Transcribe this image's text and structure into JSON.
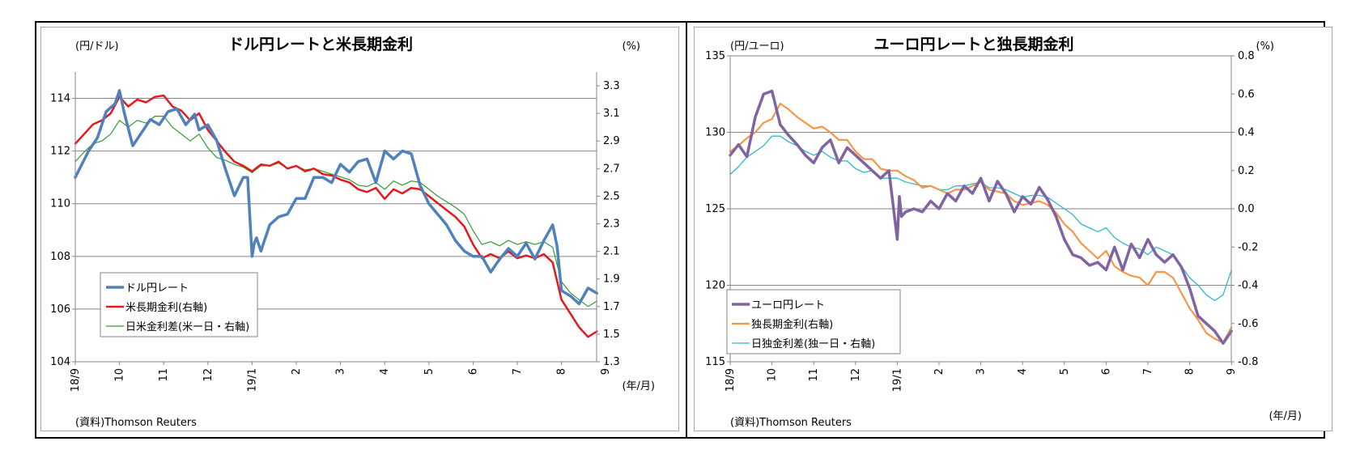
{
  "colors": {
    "frame": "#000000",
    "grid": "#868686"
  },
  "chart_data": [
    {
      "type": "line",
      "title": "ドル円レートと米長期金利",
      "ylabel_left": "(円/ドル)",
      "ylabel_right": "(%)",
      "xlabel": "(年/月)",
      "source": "(資料)Thomson Reuters",
      "ylim_left": [
        104,
        115
      ],
      "ylim_right": [
        1.3,
        3.4
      ],
      "yticks_left": [
        "104",
        "106",
        "108",
        "110",
        "112",
        "114"
      ],
      "yticks_right": [
        "1.3",
        "1.5",
        "1.7",
        "1.9",
        "2.1",
        "2.3",
        "2.5",
        "2.7",
        "2.9",
        "3.1",
        "3.3"
      ],
      "x_range": [
        0,
        11.8
      ],
      "xticks": [
        {
          "label": "18/9",
          "x": 0
        },
        {
          "label": "10",
          "x": 1
        },
        {
          "label": "11",
          "x": 2
        },
        {
          "label": "12",
          "x": 3
        },
        {
          "label": "19/1",
          "x": 4
        },
        {
          "label": "2",
          "x": 5
        },
        {
          "label": "3",
          "x": 6
        },
        {
          "label": "4",
          "x": 7
        },
        {
          "label": "5",
          "x": 8
        },
        {
          "label": "6",
          "x": 9
        },
        {
          "label": "7",
          "x": 10
        },
        {
          "label": "8",
          "x": 11
        },
        {
          "label": "9",
          "x": 12
        }
      ],
      "legend_position": "bottom-left",
      "series": [
        {
          "name": "ドル円レート",
          "axis": "left",
          "color": "#4f81bd",
          "width": 3.5,
          "x": [
            0,
            0.15,
            0.3,
            0.5,
            0.7,
            0.9,
            1.0,
            1.1,
            1.3,
            1.5,
            1.7,
            1.9,
            2.1,
            2.3,
            2.5,
            2.7,
            2.8,
            3.0,
            3.2,
            3.4,
            3.6,
            3.8,
            3.9,
            4.0,
            4.05,
            4.1,
            4.2,
            4.4,
            4.6,
            4.8,
            5.0,
            5.2,
            5.4,
            5.6,
            5.8,
            6.0,
            6.2,
            6.4,
            6.6,
            6.8,
            7.0,
            7.2,
            7.4,
            7.6,
            7.8,
            8.0,
            8.2,
            8.4,
            8.6,
            8.8,
            9.0,
            9.2,
            9.4,
            9.6,
            9.8,
            10.0,
            10.2,
            10.4,
            10.6,
            10.8,
            10.9,
            11.0,
            11.2,
            11.4,
            11.6,
            11.8
          ],
          "y": [
            111.0,
            111.5,
            112.0,
            112.5,
            113.5,
            113.8,
            114.3,
            113.5,
            112.2,
            112.7,
            113.2,
            113.0,
            113.5,
            113.6,
            113.0,
            113.4,
            112.8,
            113.0,
            112.4,
            111.3,
            110.3,
            111.0,
            111.0,
            108.0,
            108.5,
            108.7,
            108.2,
            109.2,
            109.5,
            109.6,
            110.2,
            110.2,
            111.0,
            111.0,
            110.8,
            111.5,
            111.2,
            111.6,
            111.7,
            110.8,
            112.0,
            111.7,
            112.0,
            111.9,
            110.7,
            110.0,
            109.6,
            109.2,
            108.6,
            108.2,
            108.0,
            108.0,
            107.4,
            107.9,
            108.3,
            108.0,
            108.5,
            107.9,
            108.6,
            109.2,
            108.4,
            106.7,
            106.5,
            106.2,
            106.8,
            106.6
          ]
        },
        {
          "name": "米長期金利(右軸)",
          "axis": "right",
          "color": "#e41a1c",
          "width": 2.5,
          "x": [
            0,
            0.2,
            0.4,
            0.6,
            0.8,
            1.0,
            1.2,
            1.4,
            1.6,
            1.8,
            2.0,
            2.2,
            2.4,
            2.6,
            2.8,
            3.0,
            3.2,
            3.4,
            3.6,
            3.8,
            4.0,
            4.2,
            4.4,
            4.6,
            4.8,
            5.0,
            5.2,
            5.4,
            5.6,
            5.8,
            6.0,
            6.2,
            6.4,
            6.6,
            6.8,
            7.0,
            7.2,
            7.4,
            7.6,
            7.8,
            8.0,
            8.2,
            8.4,
            8.6,
            8.8,
            9.0,
            9.2,
            9.4,
            9.6,
            9.8,
            10.0,
            10.2,
            10.4,
            10.6,
            10.8,
            11.0,
            11.2,
            11.4,
            11.6,
            11.8
          ],
          "y": [
            2.88,
            2.95,
            3.02,
            3.05,
            3.1,
            3.22,
            3.15,
            3.2,
            3.18,
            3.22,
            3.23,
            3.15,
            3.12,
            3.05,
            3.1,
            2.98,
            2.9,
            2.82,
            2.75,
            2.72,
            2.68,
            2.73,
            2.72,
            2.75,
            2.7,
            2.72,
            2.68,
            2.7,
            2.66,
            2.65,
            2.62,
            2.6,
            2.55,
            2.53,
            2.56,
            2.48,
            2.55,
            2.52,
            2.56,
            2.55,
            2.5,
            2.45,
            2.4,
            2.35,
            2.28,
            2.15,
            2.05,
            2.08,
            2.05,
            2.1,
            2.05,
            2.07,
            2.05,
            2.08,
            2.02,
            1.75,
            1.65,
            1.55,
            1.48,
            1.52
          ]
        },
        {
          "name": "日米金利差(米ー日・右軸)",
          "axis": "right",
          "color": "#339933",
          "width": 1.2,
          "x": [
            0,
            0.2,
            0.4,
            0.6,
            0.8,
            1.0,
            1.2,
            1.4,
            1.6,
            1.8,
            2.0,
            2.2,
            2.4,
            2.6,
            2.8,
            3.0,
            3.2,
            3.4,
            3.6,
            3.8,
            4.0,
            4.2,
            4.4,
            4.6,
            4.8,
            5.0,
            5.2,
            5.4,
            5.6,
            5.8,
            6.0,
            6.2,
            6.4,
            6.6,
            6.8,
            7.0,
            7.2,
            7.4,
            7.6,
            7.8,
            8.0,
            8.2,
            8.4,
            8.6,
            8.8,
            9.0,
            9.2,
            9.4,
            9.6,
            9.8,
            10.0,
            10.2,
            10.4,
            10.6,
            10.8,
            11.0,
            11.2,
            11.4,
            11.6,
            11.8
          ],
          "y": [
            2.75,
            2.82,
            2.88,
            2.9,
            2.95,
            3.05,
            3.0,
            3.05,
            3.03,
            3.08,
            3.08,
            3.0,
            2.95,
            2.9,
            2.95,
            2.85,
            2.78,
            2.76,
            2.73,
            2.71,
            2.67,
            2.72,
            2.72,
            2.74,
            2.7,
            2.72,
            2.69,
            2.7,
            2.68,
            2.66,
            2.64,
            2.62,
            2.58,
            2.57,
            2.6,
            2.55,
            2.61,
            2.58,
            2.61,
            2.6,
            2.55,
            2.5,
            2.46,
            2.42,
            2.37,
            2.25,
            2.15,
            2.17,
            2.14,
            2.18,
            2.15,
            2.17,
            2.15,
            2.17,
            2.13,
            1.88,
            1.8,
            1.75,
            1.7,
            1.74
          ]
        }
      ]
    },
    {
      "type": "line",
      "title": "ユーロ円レートと独長期金利",
      "ylabel_left": "(円/ユーロ)",
      "ylabel_right": "(%)",
      "xlabel": "(年/月)",
      "source": "(資料)Thomson Reuters",
      "ylim_left": [
        115,
        135
      ],
      "ylim_right": [
        -0.8,
        0.8
      ],
      "yticks_left": [
        "115",
        "120",
        "125",
        "130",
        "135"
      ],
      "yticks_right": [
        "-0.8",
        "-0.6",
        "-0.4",
        "-0.2",
        "0.0",
        "0.2",
        "0.4",
        "0.6",
        "0.8"
      ],
      "x_range": [
        0,
        12
      ],
      "xticks": [
        {
          "label": "18/9",
          "x": 0
        },
        {
          "label": "10",
          "x": 1
        },
        {
          "label": "11",
          "x": 2
        },
        {
          "label": "12",
          "x": 3
        },
        {
          "label": "19/1",
          "x": 4
        },
        {
          "label": "2",
          "x": 5
        },
        {
          "label": "3",
          "x": 6
        },
        {
          "label": "4",
          "x": 7
        },
        {
          "label": "5",
          "x": 8
        },
        {
          "label": "6",
          "x": 9
        },
        {
          "label": "7",
          "x": 10
        },
        {
          "label": "8",
          "x": 11
        },
        {
          "label": "9",
          "x": 12
        }
      ],
      "legend_position": "bottom-left",
      "series": [
        {
          "name": "ユーロ円レート",
          "axis": "left",
          "color": "#8064a2",
          "width": 3.5,
          "x": [
            0,
            0.2,
            0.4,
            0.6,
            0.8,
            1.0,
            1.2,
            1.4,
            1.6,
            1.8,
            2.0,
            2.2,
            2.4,
            2.6,
            2.8,
            3.0,
            3.2,
            3.4,
            3.6,
            3.8,
            4.0,
            4.05,
            4.1,
            4.2,
            4.4,
            4.6,
            4.8,
            5.0,
            5.2,
            5.4,
            5.6,
            5.8,
            6.0,
            6.2,
            6.4,
            6.6,
            6.8,
            7.0,
            7.2,
            7.4,
            7.6,
            7.8,
            8.0,
            8.2,
            8.4,
            8.6,
            8.8,
            9.0,
            9.2,
            9.4,
            9.6,
            9.8,
            10.0,
            10.2,
            10.4,
            10.6,
            10.8,
            11.0,
            11.2,
            11.4,
            11.6,
            11.8,
            12.0
          ],
          "y": [
            128.5,
            129.2,
            128.4,
            131.0,
            132.5,
            132.7,
            130.5,
            129.8,
            129.2,
            128.5,
            128.0,
            129.0,
            129.5,
            128.0,
            129.0,
            128.5,
            128.0,
            127.5,
            127.0,
            127.5,
            123.0,
            125.8,
            124.5,
            124.8,
            125.0,
            124.8,
            125.5,
            125.0,
            126.0,
            125.5,
            126.5,
            126.0,
            127.0,
            125.5,
            126.8,
            126.0,
            124.8,
            125.8,
            125.3,
            126.4,
            125.6,
            124.5,
            123.0,
            122.0,
            121.8,
            121.3,
            121.5,
            121.0,
            122.5,
            121.0,
            122.7,
            121.8,
            123.0,
            122.0,
            121.5,
            122.0,
            121.2,
            119.8,
            118.0,
            117.5,
            117.0,
            116.2,
            117.0
          ]
        },
        {
          "name": "独長期金利(右軸)",
          "axis": "right",
          "color": "#f79646",
          "width": 2.2,
          "x": [
            0,
            0.2,
            0.4,
            0.6,
            0.8,
            1.0,
            1.2,
            1.4,
            1.6,
            1.8,
            2.0,
            2.2,
            2.4,
            2.6,
            2.8,
            3.0,
            3.2,
            3.4,
            3.6,
            3.8,
            4.0,
            4.2,
            4.4,
            4.6,
            4.8,
            5.0,
            5.2,
            5.4,
            5.6,
            5.8,
            6.0,
            6.2,
            6.4,
            6.6,
            6.8,
            7.0,
            7.2,
            7.4,
            7.6,
            7.8,
            8.0,
            8.2,
            8.4,
            8.6,
            8.8,
            9.0,
            9.2,
            9.4,
            9.6,
            9.8,
            10.0,
            10.2,
            10.4,
            10.6,
            10.8,
            11.0,
            11.2,
            11.4,
            11.6,
            11.8,
            12.0
          ],
          "y": [
            0.3,
            0.33,
            0.37,
            0.4,
            0.45,
            0.47,
            0.55,
            0.52,
            0.48,
            0.45,
            0.42,
            0.43,
            0.4,
            0.36,
            0.36,
            0.3,
            0.26,
            0.26,
            0.21,
            0.2,
            0.2,
            0.17,
            0.15,
            0.11,
            0.12,
            0.1,
            0.08,
            0.1,
            0.1,
            0.12,
            0.14,
            0.1,
            0.09,
            0.08,
            0.04,
            0.02,
            0.03,
            0.04,
            0.02,
            -0.02,
            -0.08,
            -0.12,
            -0.18,
            -0.22,
            -0.26,
            -0.22,
            -0.3,
            -0.33,
            -0.35,
            -0.36,
            -0.4,
            -0.33,
            -0.33,
            -0.36,
            -0.44,
            -0.52,
            -0.58,
            -0.65,
            -0.68,
            -0.7,
            -0.62
          ]
        },
        {
          "name": "日独金利差(独ー日・右軸)",
          "axis": "right",
          "color": "#31b6cf",
          "width": 1.3,
          "x": [
            0,
            0.2,
            0.4,
            0.6,
            0.8,
            1.0,
            1.2,
            1.4,
            1.6,
            1.8,
            2.0,
            2.2,
            2.4,
            2.6,
            2.8,
            3.0,
            3.2,
            3.4,
            3.6,
            3.8,
            4.0,
            4.2,
            4.4,
            4.6,
            4.8,
            5.0,
            5.2,
            5.4,
            5.6,
            5.8,
            6.0,
            6.2,
            6.4,
            6.6,
            6.8,
            7.0,
            7.2,
            7.4,
            7.6,
            7.8,
            8.0,
            8.2,
            8.4,
            8.6,
            8.8,
            9.0,
            9.2,
            9.4,
            9.6,
            9.8,
            10.0,
            10.2,
            10.4,
            10.6,
            10.8,
            11.0,
            11.2,
            11.4,
            11.6,
            11.8,
            12.0
          ],
          "y": [
            0.18,
            0.22,
            0.27,
            0.3,
            0.33,
            0.38,
            0.38,
            0.35,
            0.33,
            0.3,
            0.28,
            0.3,
            0.27,
            0.25,
            0.25,
            0.21,
            0.19,
            0.2,
            0.16,
            0.16,
            0.16,
            0.14,
            0.13,
            0.12,
            0.12,
            0.1,
            0.1,
            0.12,
            0.12,
            0.13,
            0.14,
            0.11,
            0.11,
            0.1,
            0.08,
            0.06,
            0.07,
            0.07,
            0.06,
            0.03,
            0.0,
            -0.03,
            -0.08,
            -0.1,
            -0.12,
            -0.1,
            -0.15,
            -0.18,
            -0.2,
            -0.21,
            -0.24,
            -0.2,
            -0.22,
            -0.24,
            -0.3,
            -0.36,
            -0.4,
            -0.45,
            -0.48,
            -0.45,
            -0.32
          ]
        }
      ]
    }
  ]
}
